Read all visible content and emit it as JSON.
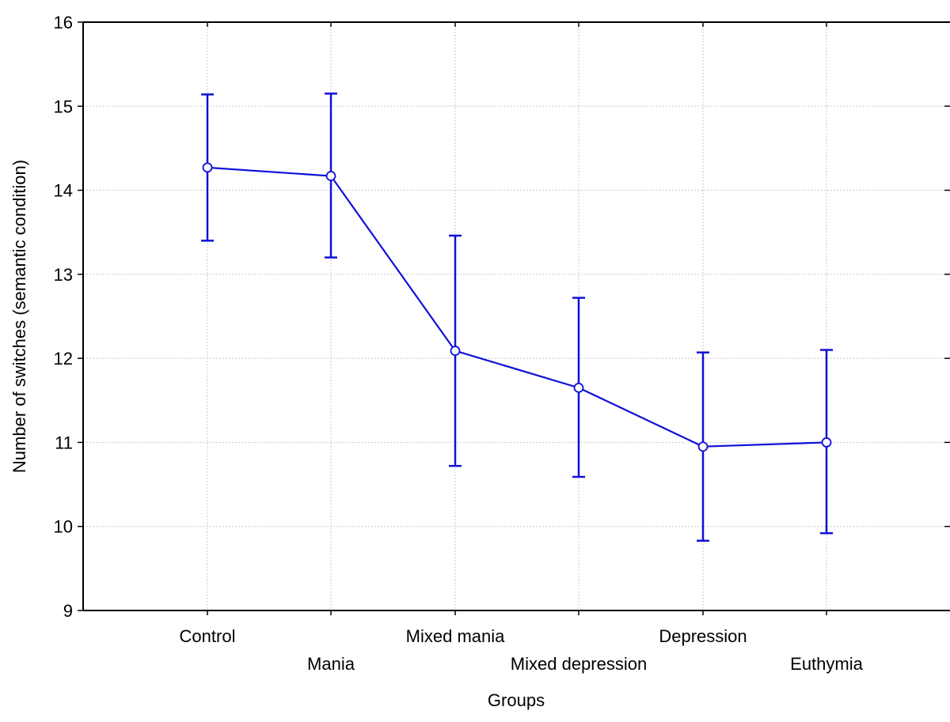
{
  "chart_data": {
    "type": "line",
    "title": "",
    "xlabel": "Groups",
    "ylabel": "Number of switches (semantic condition)",
    "categories": [
      "Control",
      "Mania",
      "Mixed mania",
      "Mixed depression",
      "Depression",
      "Euthymia"
    ],
    "series": [
      {
        "values": [
          14.27,
          14.17,
          12.09,
          11.65,
          10.95,
          11.0
        ],
        "error_low": [
          13.4,
          13.2,
          10.72,
          10.59,
          9.83,
          9.92
        ],
        "error_high": [
          15.14,
          15.15,
          13.46,
          12.72,
          12.07,
          12.1
        ]
      }
    ],
    "ylim": [
      9,
      16
    ],
    "yticks": [
      9,
      10,
      11,
      12,
      13,
      14,
      15,
      16
    ],
    "grid": true,
    "colors": {
      "line": "#1010d8",
      "marker_fill": "#ffffff",
      "grid": "#c8c8c8",
      "axis": "#000000"
    }
  }
}
